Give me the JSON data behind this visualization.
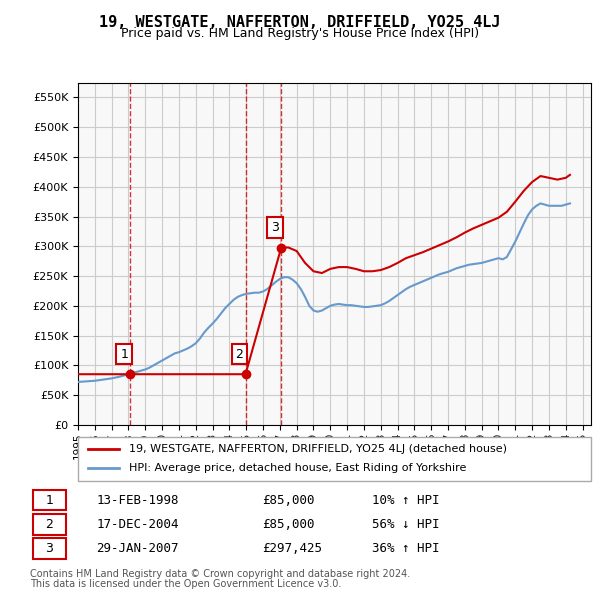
{
  "title": "19, WESTGATE, NAFFERTON, DRIFFIELD, YO25 4LJ",
  "subtitle": "Price paid vs. HM Land Registry's House Price Index (HPI)",
  "ylabel_ticks": [
    "£0",
    "£50K",
    "£100K",
    "£150K",
    "£200K",
    "£250K",
    "£300K",
    "£350K",
    "£400K",
    "£450K",
    "£500K",
    "£550K"
  ],
  "ylim": [
    0,
    575000
  ],
  "xlim_start": 1995.0,
  "xlim_end": 2025.5,
  "sale_color": "#cc0000",
  "hpi_color": "#6699cc",
  "transaction_color": "#cc0000",
  "vertical_line_color": "#cc0000",
  "grid_color": "#cccccc",
  "background_color": "#ffffff",
  "transactions": [
    {
      "num": 1,
      "date_label": "13-FEB-1998",
      "date_x": 1998.11,
      "price": 85000,
      "pct": "10%",
      "dir": "↑"
    },
    {
      "num": 2,
      "date_label": "17-DEC-2004",
      "date_x": 2004.96,
      "price": 85000,
      "pct": "56%",
      "dir": "↓"
    },
    {
      "num": 3,
      "date_label": "29-JAN-2007",
      "date_x": 2007.08,
      "price": 297425,
      "pct": "36%",
      "dir": "↑"
    }
  ],
  "legend_label_sale": "19, WESTGATE, NAFFERTON, DRIFFIELD, YO25 4LJ (detached house)",
  "legend_label_hpi": "HPI: Average price, detached house, East Riding of Yorkshire",
  "footer1": "Contains HM Land Registry data © Crown copyright and database right 2024.",
  "footer2": "This data is licensed under the Open Government Licence v3.0.",
  "table_rows": [
    {
      "num": 1,
      "date": "13-FEB-1998",
      "price": "£85,000",
      "hpi": "10% ↑ HPI"
    },
    {
      "num": 2,
      "date": "17-DEC-2004",
      "price": "£85,000",
      "hpi": "56% ↓ HPI"
    },
    {
      "num": 3,
      "date": "29-JAN-2007",
      "price": "£297,425",
      "hpi": "36% ↑ HPI"
    }
  ],
  "hpi_data": {
    "x": [
      1995.0,
      1995.25,
      1995.5,
      1995.75,
      1996.0,
      1996.25,
      1996.5,
      1996.75,
      1997.0,
      1997.25,
      1997.5,
      1997.75,
      1998.0,
      1998.25,
      1998.5,
      1998.75,
      1999.0,
      1999.25,
      1999.5,
      1999.75,
      2000.0,
      2000.25,
      2000.5,
      2000.75,
      2001.0,
      2001.25,
      2001.5,
      2001.75,
      2002.0,
      2002.25,
      2002.5,
      2002.75,
      2003.0,
      2003.25,
      2003.5,
      2003.75,
      2004.0,
      2004.25,
      2004.5,
      2004.75,
      2005.0,
      2005.25,
      2005.5,
      2005.75,
      2006.0,
      2006.25,
      2006.5,
      2006.75,
      2007.0,
      2007.25,
      2007.5,
      2007.75,
      2008.0,
      2008.25,
      2008.5,
      2008.75,
      2009.0,
      2009.25,
      2009.5,
      2009.75,
      2010.0,
      2010.25,
      2010.5,
      2010.75,
      2011.0,
      2011.25,
      2011.5,
      2011.75,
      2012.0,
      2012.25,
      2012.5,
      2012.75,
      2013.0,
      2013.25,
      2013.5,
      2013.75,
      2014.0,
      2014.25,
      2014.5,
      2014.75,
      2015.0,
      2015.25,
      2015.5,
      2015.75,
      2016.0,
      2016.25,
      2016.5,
      2016.75,
      2017.0,
      2017.25,
      2017.5,
      2017.75,
      2018.0,
      2018.25,
      2018.5,
      2018.75,
      2019.0,
      2019.25,
      2019.5,
      2019.75,
      2020.0,
      2020.25,
      2020.5,
      2020.75,
      2021.0,
      2021.25,
      2021.5,
      2021.75,
      2022.0,
      2022.25,
      2022.5,
      2022.75,
      2023.0,
      2023.25,
      2023.5,
      2023.75,
      2024.0,
      2024.25
    ],
    "y": [
      72000,
      72500,
      73000,
      73500,
      74000,
      75000,
      76000,
      77000,
      78000,
      79500,
      81000,
      83000,
      85000,
      87000,
      89000,
      91000,
      93000,
      96000,
      100000,
      104000,
      108000,
      112000,
      116000,
      120000,
      122000,
      125000,
      128000,
      132000,
      137000,
      145000,
      155000,
      163000,
      170000,
      178000,
      187000,
      196000,
      203000,
      210000,
      215000,
      218000,
      220000,
      221000,
      222000,
      222000,
      224000,
      228000,
      234000,
      240000,
      245000,
      248000,
      248000,
      244000,
      238000,
      228000,
      215000,
      200000,
      192000,
      190000,
      192000,
      196000,
      200000,
      202000,
      203000,
      202000,
      201000,
      201000,
      200000,
      199000,
      198000,
      198000,
      199000,
      200000,
      201000,
      204000,
      208000,
      213000,
      218000,
      223000,
      228000,
      232000,
      235000,
      238000,
      241000,
      244000,
      247000,
      250000,
      253000,
      255000,
      257000,
      260000,
      263000,
      265000,
      267000,
      269000,
      270000,
      271000,
      272000,
      274000,
      276000,
      278000,
      280000,
      278000,
      282000,
      295000,
      308000,
      323000,
      338000,
      352000,
      362000,
      368000,
      372000,
      370000,
      368000,
      368000,
      368000,
      368000,
      370000,
      372000
    ]
  },
  "sale_line_data": {
    "x": [
      1995.0,
      1998.11,
      1998.11,
      2004.96,
      2004.96,
      2007.08,
      2007.08,
      2007.5,
      2008.0,
      2008.5,
      2009.0,
      2009.5,
      2010.0,
      2010.5,
      2011.0,
      2011.5,
      2012.0,
      2012.5,
      2013.0,
      2013.5,
      2014.0,
      2014.5,
      2015.0,
      2015.5,
      2016.0,
      2016.5,
      2017.0,
      2017.5,
      2018.0,
      2018.5,
      2019.0,
      2019.5,
      2020.0,
      2020.5,
      2021.0,
      2021.5,
      2022.0,
      2022.5,
      2023.0,
      2023.5,
      2024.0,
      2024.25
    ],
    "y": [
      85000,
      85000,
      85000,
      85000,
      85000,
      297425,
      297425,
      298000,
      292000,
      272000,
      258000,
      255000,
      262000,
      265000,
      265000,
      262000,
      258000,
      258000,
      260000,
      265000,
      272000,
      280000,
      285000,
      290000,
      296000,
      302000,
      308000,
      315000,
      323000,
      330000,
      336000,
      342000,
      348000,
      358000,
      375000,
      393000,
      408000,
      418000,
      415000,
      412000,
      415000,
      420000
    ]
  }
}
